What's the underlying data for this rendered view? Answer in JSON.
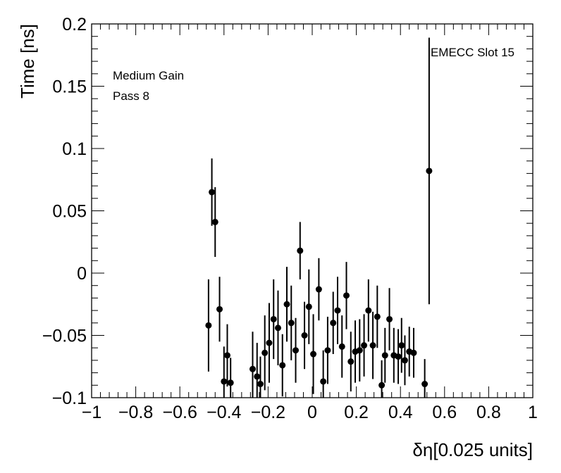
{
  "chart_data": {
    "type": "scatter",
    "xlabel": "δη[0.025 units]",
    "ylabel": "Time [ns]",
    "xlim": [
      -1,
      1
    ],
    "ylim": [
      -0.1,
      0.2
    ],
    "x_tick_labels": [
      "−1",
      "−0.8",
      "−0.6",
      "−0.4",
      "−0.2",
      "0",
      "0.2",
      "0.4",
      "0.6",
      "0.8",
      "1"
    ],
    "y_tick_labels": [
      "−0.1",
      "−0.05",
      "0",
      "0.05",
      "0.1",
      "0.15",
      "0.2"
    ],
    "annotations": {
      "top_right": "EMECC Slot 15",
      "top_left_line1": "Medium Gain",
      "top_left_line2": "Pass 8"
    },
    "grid": false,
    "marker_color": "#000000",
    "points": [
      {
        "x": -0.47,
        "y": -0.042,
        "err": 0.037
      },
      {
        "x": -0.455,
        "y": 0.065,
        "err": 0.027
      },
      {
        "x": -0.44,
        "y": 0.041,
        "err": 0.028
      },
      {
        "x": -0.42,
        "y": -0.029,
        "err": 0.026
      },
      {
        "x": -0.4,
        "y": -0.087,
        "err": 0.028
      },
      {
        "x": -0.385,
        "y": -0.066,
        "err": 0.025
      },
      {
        "x": -0.37,
        "y": -0.088,
        "err": 0.02
      },
      {
        "x": -0.27,
        "y": -0.077,
        "err": 0.03
      },
      {
        "x": -0.25,
        "y": -0.083,
        "err": 0.027
      },
      {
        "x": -0.235,
        "y": -0.089,
        "err": 0.022
      },
      {
        "x": -0.215,
        "y": -0.064,
        "err": 0.03
      },
      {
        "x": -0.195,
        "y": -0.056,
        "err": 0.032
      },
      {
        "x": -0.175,
        "y": -0.037,
        "err": 0.032
      },
      {
        "x": -0.155,
        "y": -0.044,
        "err": 0.03
      },
      {
        "x": -0.135,
        "y": -0.074,
        "err": 0.025
      },
      {
        "x": -0.115,
        "y": -0.025,
        "err": 0.03
      },
      {
        "x": -0.095,
        "y": -0.04,
        "err": 0.03
      },
      {
        "x": -0.075,
        "y": -0.062,
        "err": 0.026
      },
      {
        "x": -0.055,
        "y": 0.018,
        "err": 0.023
      },
      {
        "x": -0.035,
        "y": -0.05,
        "err": 0.027
      },
      {
        "x": -0.015,
        "y": -0.027,
        "err": 0.03
      },
      {
        "x": 0.005,
        "y": -0.065,
        "err": 0.032
      },
      {
        "x": 0.03,
        "y": -0.013,
        "err": 0.025
      },
      {
        "x": 0.05,
        "y": -0.087,
        "err": 0.025
      },
      {
        "x": 0.07,
        "y": -0.062,
        "err": 0.027
      },
      {
        "x": 0.095,
        "y": -0.04,
        "err": 0.025
      },
      {
        "x": 0.115,
        "y": -0.03,
        "err": 0.027
      },
      {
        "x": 0.135,
        "y": -0.059,
        "err": 0.025
      },
      {
        "x": 0.155,
        "y": -0.018,
        "err": 0.027
      },
      {
        "x": 0.175,
        "y": -0.071,
        "err": 0.024
      },
      {
        "x": 0.195,
        "y": -0.063,
        "err": 0.025
      },
      {
        "x": 0.215,
        "y": -0.062,
        "err": 0.025
      },
      {
        "x": 0.235,
        "y": -0.058,
        "err": 0.025
      },
      {
        "x": 0.255,
        "y": -0.03,
        "err": 0.025
      },
      {
        "x": 0.275,
        "y": -0.058,
        "err": 0.027
      },
      {
        "x": 0.295,
        "y": -0.035,
        "err": 0.025
      },
      {
        "x": 0.315,
        "y": -0.09,
        "err": 0.02
      },
      {
        "x": 0.33,
        "y": -0.066,
        "err": 0.022
      },
      {
        "x": 0.35,
        "y": -0.037,
        "err": 0.025
      },
      {
        "x": 0.37,
        "y": -0.066,
        "err": 0.022
      },
      {
        "x": 0.39,
        "y": -0.067,
        "err": 0.022
      },
      {
        "x": 0.405,
        "y": -0.058,
        "err": 0.022
      },
      {
        "x": 0.42,
        "y": -0.07,
        "err": 0.02
      },
      {
        "x": 0.44,
        "y": -0.063,
        "err": 0.02
      },
      {
        "x": 0.46,
        "y": -0.064,
        "err": 0.02
      },
      {
        "x": 0.51,
        "y": -0.089,
        "err": 0.02
      },
      {
        "x": 0.53,
        "y": 0.082,
        "err": 0.107
      }
    ]
  }
}
